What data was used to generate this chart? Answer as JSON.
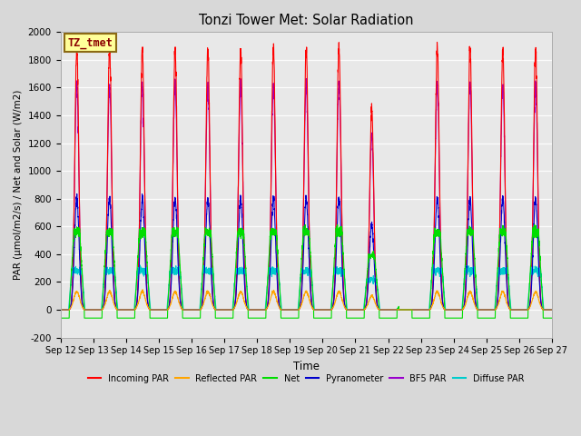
{
  "title": "Tonzi Tower Met: Solar Radiation",
  "ylabel": "PAR (μmol/m2/s) / Net and Solar (W/m2)",
  "xlabel": "Time",
  "ylim": [
    -200,
    2000
  ],
  "yticks": [
    -200,
    0,
    200,
    400,
    600,
    800,
    1000,
    1200,
    1400,
    1600,
    1800,
    2000
  ],
  "xtick_labels": [
    "Sep 12",
    "Sep 13",
    "Sep 14",
    "Sep 15",
    "Sep 16",
    "Sep 17",
    "Sep 18",
    "Sep 19",
    "Sep 20",
    "Sep 21",
    "Sep 22",
    "Sep 23",
    "Sep 24",
    "Sep 25",
    "Sep 26",
    "Sep 27"
  ],
  "annotation_text": "TZ_tmet",
  "annotation_color": "#8B0000",
  "annotation_bg": "#FFFF99",
  "annotation_border": "#8B6914",
  "bg_color": "#D8D8D8",
  "plot_bg": "#E8E8E8",
  "n_days": 15,
  "series": {
    "incoming_par": {
      "color": "#FF0000",
      "label": "Incoming PAR",
      "peak": 1880
    },
    "reflected_par": {
      "color": "#FFA500",
      "label": "Reflected PAR",
      "peak": 130
    },
    "net": {
      "color": "#00DD00",
      "label": "Net",
      "peak": 560,
      "night_val": -60
    },
    "pyranometer": {
      "color": "#0000CC",
      "label": "Pyranometer",
      "peak": 800
    },
    "bf5_par": {
      "color": "#9900CC",
      "label": "BF5 PAR",
      "peak": 1620
    },
    "diffuse_par": {
      "color": "#00CCCC",
      "label": "Diffuse PAR",
      "peak": 280
    }
  },
  "figsize": [
    6.4,
    4.8
  ],
  "dpi": 100
}
